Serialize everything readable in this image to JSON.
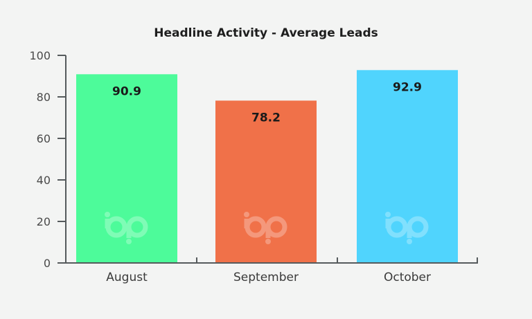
{
  "chart_data": {
    "type": "bar",
    "title": "Headline Activity - Average Leads",
    "xlabel": "",
    "ylabel": "",
    "categories": [
      "August",
      "September",
      "October"
    ],
    "values": [
      90.9,
      78.2,
      92.9
    ],
    "data_labels": [
      "90.9",
      "78.2",
      "92.9"
    ],
    "colors": [
      "#4dfb9a",
      "#f07149",
      "#50d4fd"
    ],
    "ylim": [
      0,
      100
    ],
    "yticks": [
      0,
      20,
      40,
      60,
      80,
      100
    ],
    "grid": false,
    "legend": "none",
    "watermark_icon": "bp-logo-icon"
  }
}
